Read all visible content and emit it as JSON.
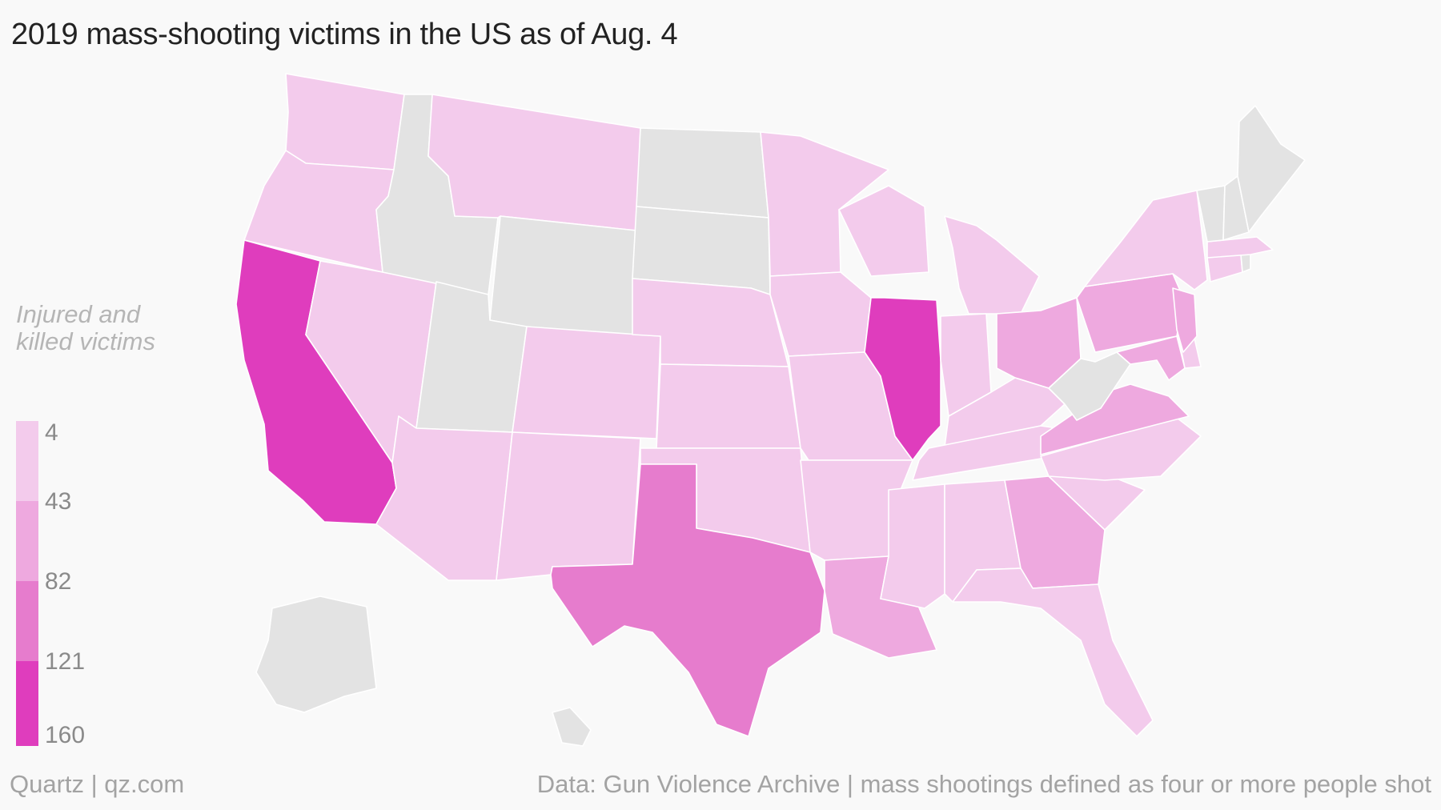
{
  "title": "2019 mass-shooting victims in the US as of Aug. 4",
  "legend": {
    "title_line1": "Injured and",
    "title_line2": "killed victims",
    "bins": [
      {
        "label": "4",
        "color": "#f3cbec"
      },
      {
        "label": "43",
        "color": "#eea9df"
      },
      {
        "label": "82",
        "color": "#e67ccd"
      },
      {
        "label": "121",
        "color": "#df3dbd"
      },
      {
        "label": "160",
        "color": "#df3dbd"
      }
    ]
  },
  "colors": {
    "no_data": "#e3e3e3",
    "level1": "#f3cbec",
    "level2": "#eea9df",
    "level3": "#e67ccd",
    "level4": "#df3dbd"
  },
  "map_data": {
    "WA": 1,
    "OR": 1,
    "CA": 4,
    "NV": 1,
    "ID": 0,
    "MT": 1,
    "WY": 0,
    "UT": 0,
    "AZ": 1,
    "CO": 1,
    "NM": 1,
    "ND": 0,
    "SD": 0,
    "NE": 1,
    "KS": 1,
    "OK": 1,
    "TX": 3,
    "MN": 1,
    "IA": 1,
    "MO": 1,
    "AR": 1,
    "LA": 2,
    "WI": 1,
    "IL": 4,
    "MI": 1,
    "IN": 1,
    "OH": 2,
    "KY": 1,
    "TN": 1,
    "MS": 1,
    "AL": 1,
    "GA": 2,
    "FL": 1,
    "SC": 1,
    "NC": 1,
    "VA": 2,
    "WV": 0,
    "MD": 2,
    "DE": 1,
    "PA": 2,
    "NJ": 2,
    "NY": 1,
    "CT": 1,
    "RI": 0,
    "MA": 1,
    "VT": 0,
    "NH": 0,
    "ME": 0,
    "AK": 0,
    "HI": 0
  },
  "footer": {
    "left": "Quartz | qz.com",
    "right": "Data: Gun Violence Archive | mass shootings defined as four or more people shot"
  }
}
